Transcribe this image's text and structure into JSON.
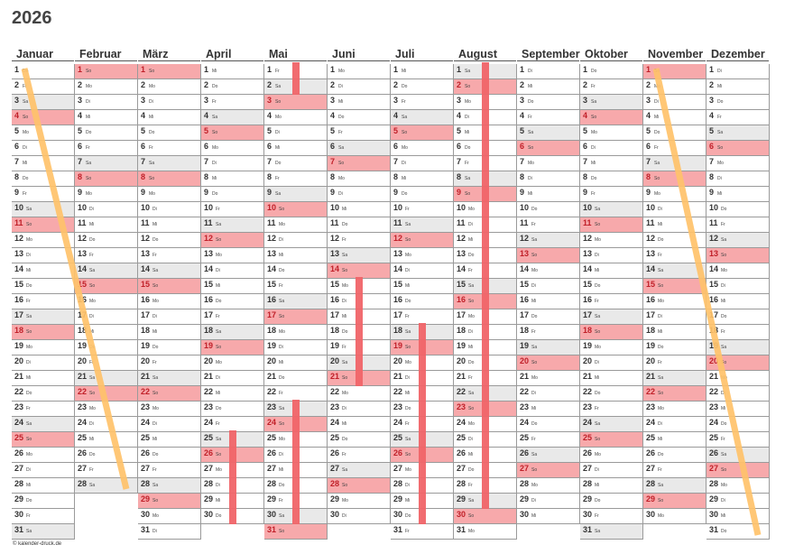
{
  "year": "2026",
  "footer": "© kalender-druck.de",
  "colors": {
    "sunday": "#f7a9ab",
    "saturday": "#e9e9e9",
    "vacation_bar": "#f06468",
    "highlight_stroke": "#ffc36b"
  },
  "months": [
    {
      "name": "Januar",
      "days": [
        "Do",
        "Fr",
        "Sa",
        "So",
        "Mo",
        "Di",
        "Mi",
        "Do",
        "Fr",
        "Sa",
        "So",
        "Mo",
        "Di",
        "Mi",
        "Do",
        "Fr",
        "Sa",
        "So",
        "Mo",
        "Di",
        "Mi",
        "Do",
        "Fr",
        "Sa",
        "So",
        "Mo",
        "Di",
        "Mi",
        "Do",
        "Fr",
        "Sa"
      ]
    },
    {
      "name": "Februar",
      "days": [
        "So",
        "Mo",
        "Di",
        "Mi",
        "Do",
        "Fr",
        "Sa",
        "So",
        "Mo",
        "Di",
        "Mi",
        "Do",
        "Fr",
        "Sa",
        "So",
        "Mo",
        "Di",
        "Mi",
        "Do",
        "Fr",
        "Sa",
        "So",
        "Mo",
        "Di",
        "Mi",
        "Do",
        "Fr",
        "Sa"
      ]
    },
    {
      "name": "März",
      "days": [
        "So",
        "Mo",
        "Di",
        "Mi",
        "Do",
        "Fr",
        "Sa",
        "So",
        "Mo",
        "Di",
        "Mi",
        "Do",
        "Fr",
        "Sa",
        "So",
        "Mo",
        "Di",
        "Mi",
        "Do",
        "Fr",
        "Sa",
        "So",
        "Mo",
        "Di",
        "Mi",
        "Do",
        "Fr",
        "Sa",
        "So",
        "Mo",
        "Di"
      ]
    },
    {
      "name": "April",
      "days": [
        "Mi",
        "Do",
        "Fr",
        "Sa",
        "So",
        "Mo",
        "Di",
        "Mi",
        "Do",
        "Fr",
        "Sa",
        "So",
        "Mo",
        "Di",
        "Mi",
        "Do",
        "Fr",
        "Sa",
        "So",
        "Mo",
        "Di",
        "Mi",
        "Do",
        "Fr",
        "Sa",
        "So",
        "Mo",
        "Di",
        "Mi",
        "Do"
      ]
    },
    {
      "name": "Mai",
      "days": [
        "Fr",
        "Sa",
        "So",
        "Mo",
        "Di",
        "Mi",
        "Do",
        "Fr",
        "Sa",
        "So",
        "Mo",
        "Di",
        "Mi",
        "Do",
        "Fr",
        "Sa",
        "So",
        "Mo",
        "Di",
        "Mi",
        "Do",
        "Fr",
        "Sa",
        "So",
        "Mo",
        "Di",
        "Mi",
        "Do",
        "Fr",
        "Sa",
        "So"
      ]
    },
    {
      "name": "Juni",
      "days": [
        "Mo",
        "Di",
        "Mi",
        "Do",
        "Fr",
        "Sa",
        "So",
        "Mo",
        "Di",
        "Mi",
        "Do",
        "Fr",
        "Sa",
        "So",
        "Mo",
        "Di",
        "Mi",
        "Do",
        "Fr",
        "Sa",
        "So",
        "Mo",
        "Di",
        "Mi",
        "Do",
        "Fr",
        "Sa",
        "So",
        "Mo",
        "Di"
      ]
    },
    {
      "name": "Juli",
      "days": [
        "Mi",
        "Do",
        "Fr",
        "Sa",
        "So",
        "Mo",
        "Di",
        "Mi",
        "Do",
        "Fr",
        "Sa",
        "So",
        "Mo",
        "Di",
        "Mi",
        "Do",
        "Fr",
        "Sa",
        "So",
        "Mo",
        "Di",
        "Mi",
        "Do",
        "Fr",
        "Sa",
        "So",
        "Mo",
        "Di",
        "Mi",
        "Do",
        "Fr"
      ]
    },
    {
      "name": "August",
      "days": [
        "Sa",
        "So",
        "Mo",
        "Di",
        "Mi",
        "Do",
        "Fr",
        "Sa",
        "So",
        "Mo",
        "Di",
        "Mi",
        "Do",
        "Fr",
        "Sa",
        "So",
        "Mo",
        "Di",
        "Mi",
        "Do",
        "Fr",
        "Sa",
        "So",
        "Mo",
        "Di",
        "Mi",
        "Do",
        "Fr",
        "Sa",
        "So",
        "Mo"
      ]
    },
    {
      "name": "September",
      "days": [
        "Di",
        "Mi",
        "Do",
        "Fr",
        "Sa",
        "So",
        "Mo",
        "Di",
        "Mi",
        "Do",
        "Fr",
        "Sa",
        "So",
        "Mo",
        "Di",
        "Mi",
        "Do",
        "Fr",
        "Sa",
        "So",
        "Mo",
        "Di",
        "Mi",
        "Do",
        "Fr",
        "Sa",
        "So",
        "Mo",
        "Di",
        "Mi"
      ]
    },
    {
      "name": "Oktober",
      "days": [
        "Do",
        "Fr",
        "Sa",
        "So",
        "Mo",
        "Di",
        "Mi",
        "Do",
        "Fr",
        "Sa",
        "So",
        "Mo",
        "Di",
        "Mi",
        "Do",
        "Fr",
        "Sa",
        "So",
        "Mo",
        "Di",
        "Mi",
        "Do",
        "Fr",
        "Sa",
        "So",
        "Mo",
        "Di",
        "Mi",
        "Do",
        "Fr",
        "Sa"
      ]
    },
    {
      "name": "November",
      "days": [
        "So",
        "Mo",
        "Di",
        "Mi",
        "Do",
        "Fr",
        "Sa",
        "So",
        "Mo",
        "Di",
        "Mi",
        "Do",
        "Fr",
        "Sa",
        "So",
        "Mo",
        "Di",
        "Mi",
        "Do",
        "Fr",
        "Sa",
        "So",
        "Mo",
        "Di",
        "Mi",
        "Do",
        "Fr",
        "Sa",
        "So",
        "Mo"
      ]
    },
    {
      "name": "Dezember",
      "days": [
        "Di",
        "Mi",
        "Do",
        "Fr",
        "Sa",
        "So",
        "Mo",
        "Di",
        "Mi",
        "Do",
        "Fr",
        "Sa",
        "So",
        "Mo",
        "Di",
        "Mi",
        "Do",
        "Fr",
        "Sa",
        "So",
        "Mo",
        "Di",
        "Mi",
        "Do",
        "Fr",
        "Sa",
        "So",
        "Mo",
        "Di",
        "Mi",
        "Do"
      ]
    }
  ],
  "vacation_bars": [
    {
      "month": "Mai",
      "from": 1,
      "to": 2
    },
    {
      "month": "August",
      "from": 1,
      "to": 29
    },
    {
      "month": "Juni",
      "from": 15,
      "to": 21
    },
    {
      "month": "Juli",
      "from": 18,
      "to": 30
    },
    {
      "month": "April",
      "from": 25,
      "to": 30
    },
    {
      "month": "Mai",
      "from": 23,
      "to": 30
    }
  ],
  "diagonal_strokes": [
    {
      "from": {
        "month": "Januar",
        "day": 1
      },
      "to": {
        "month": "Februar",
        "day": 28
      }
    },
    {
      "from": {
        "month": "November",
        "day": 1
      },
      "to": {
        "month": "Dezember",
        "day": 31
      }
    }
  ]
}
